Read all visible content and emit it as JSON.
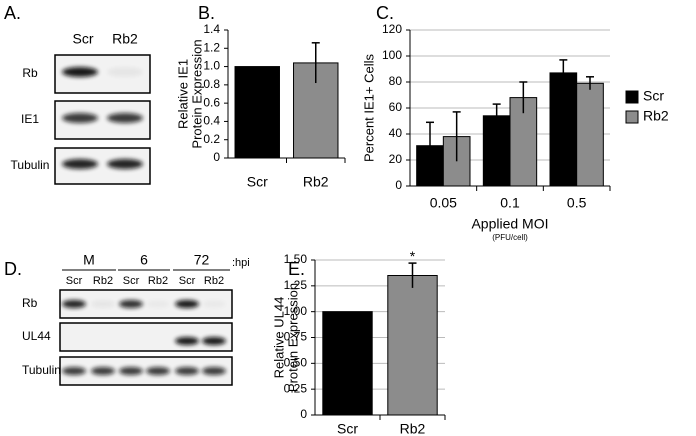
{
  "panel_labels": [
    "A.",
    "B.",
    "C.",
    "D.",
    "E."
  ],
  "blot_a": {
    "columns": [
      "Scr",
      "Rb2"
    ],
    "rows": [
      "Rb",
      "IE1",
      "Tubulin"
    ]
  },
  "blot_d": {
    "groups": [
      "M",
      "6",
      "72"
    ],
    "group_unit": ":hpi",
    "lanes": [
      "Scr",
      "Rb2",
      "Scr",
      "Rb2",
      "Scr",
      "Rb2"
    ],
    "rows": [
      "Rb",
      "UL44",
      "Tubulin"
    ]
  },
  "chart_data": [
    {
      "type": "bar",
      "y_label": [
        "Relative IE1",
        "Protein Expression"
      ],
      "categories": [
        "Scr",
        "Rb2"
      ],
      "series": [
        {
          "name": null,
          "colors": [
            "#000000",
            "#8c8c8c"
          ],
          "values": [
            1.0,
            1.04
          ],
          "errors": [
            null,
            0.22
          ]
        }
      ],
      "ylim": [
        0,
        1.4
      ],
      "yticks": [
        0,
        0.2,
        0.4,
        0.6,
        0.8,
        {
          "value": 1,
          "label": "1.0"
        },
        1.2,
        1.4
      ],
      "grid": false
    },
    {
      "type": "bar",
      "y_label": [
        "Percent IE1+ Cells"
      ],
      "x_label": "Applied MOI",
      "x_sublabel": "(PFU/cell)",
      "categories": [
        "0.05",
        "0.1",
        "0.5"
      ],
      "series": [
        {
          "name": "Scr",
          "color": "#000000",
          "values": [
            31,
            54,
            87
          ],
          "errors": [
            18,
            9,
            10
          ]
        },
        {
          "name": "Rb2",
          "color": "#8c8c8c",
          "values": [
            38,
            68,
            79
          ],
          "errors": [
            19,
            12,
            5
          ]
        }
      ],
      "ylim": [
        0,
        120
      ],
      "yticks": [
        0,
        20,
        40,
        60,
        80,
        100,
        120
      ],
      "grid": true,
      "legend": "right"
    },
    {
      "type": "bar",
      "y_label": [
        "Relative UL44",
        "Protein Expression"
      ],
      "categories": [
        "Scr",
        "Rb2"
      ],
      "series": [
        {
          "name": null,
          "colors": [
            "#000000",
            "#8c8c8c"
          ],
          "values": [
            1.0,
            1.35
          ],
          "errors": [
            null,
            0.12
          ]
        }
      ],
      "annotations": [
        {
          "text": "*",
          "category": 1
        }
      ],
      "ylim": [
        0,
        1.5
      ],
      "yticks": [
        0,
        {
          "value": 0.25,
          "label": "0.25"
        },
        {
          "value": 0.5,
          "label": "0.50"
        },
        {
          "value": 0.75,
          "label": "0.75"
        },
        {
          "value": 1,
          "label": "1.00"
        },
        {
          "value": 1.25,
          "label": "1.25"
        },
        {
          "value": 1.5,
          "label": "1.50"
        }
      ],
      "grid": true
    }
  ]
}
